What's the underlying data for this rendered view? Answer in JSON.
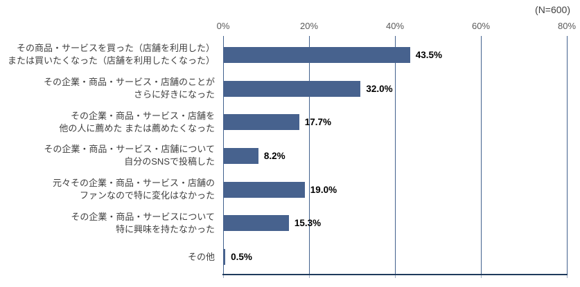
{
  "chart_data": {
    "type": "bar",
    "orientation": "horizontal",
    "title": "",
    "n_label": "(N=600)",
    "xlabel": "",
    "ylabel": "",
    "xlim": [
      0,
      80
    ],
    "grid": true,
    "x_ticks": [
      {
        "value": 0,
        "label": "0%"
      },
      {
        "value": 20,
        "label": "20%"
      },
      {
        "value": 40,
        "label": "40%"
      },
      {
        "value": 60,
        "label": "60%"
      },
      {
        "value": 80,
        "label": "80%"
      }
    ],
    "rows": [
      {
        "label_lines": [
          "その商品・サービスを買った（店舗を利用した）",
          "または買いたくなった（店舗を利用したくなった）"
        ],
        "value": 43.5,
        "value_label": "43.5%"
      },
      {
        "label_lines": [
          "その企業・商品・サービス・店舗のことが",
          "さらに好きになった"
        ],
        "value": 32.0,
        "value_label": "32.0%"
      },
      {
        "label_lines": [
          "その企業・商品・サービス・店舗を",
          "他の人に薦めた または薦めたくなった"
        ],
        "value": 17.7,
        "value_label": "17.7%"
      },
      {
        "label_lines": [
          "その企業・商品・サービス・店舗について",
          "自分のSNSで投稿した"
        ],
        "value": 8.2,
        "value_label": "8.2%"
      },
      {
        "label_lines": [
          "元々その企業・商品・サービス・店舗の",
          "ファンなので特に変化はなかった"
        ],
        "value": 19.0,
        "value_label": "19.0%"
      },
      {
        "label_lines": [
          "その企業・商品・サービスについて",
          "特に興味を持たなかった"
        ],
        "value": 15.3,
        "value_label": "15.3%"
      },
      {
        "label_lines": [
          "その他"
        ],
        "value": 0.5,
        "value_label": "0.5%"
      }
    ],
    "colors": {
      "bar": "#47628E",
      "gridline": "#41608D",
      "axis_line": "#1F3A5C",
      "bottom_tick": "#9FAEC4",
      "category_text": "#3F3F3F",
      "tick_text": "#595959",
      "value_text": "#000000"
    }
  }
}
